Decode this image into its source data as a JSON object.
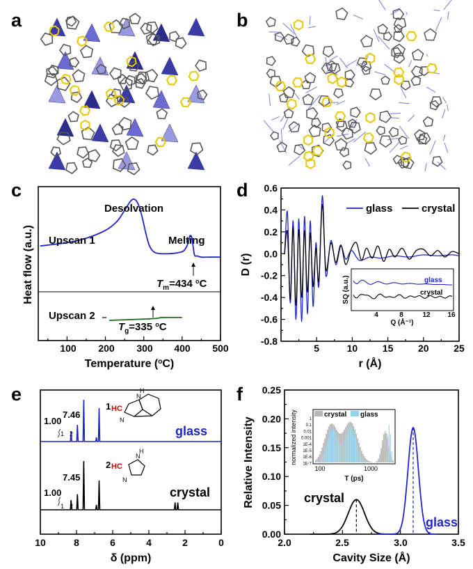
{
  "panels": {
    "a": {
      "label": "a"
    },
    "b": {
      "label": "b"
    },
    "c": {
      "label": "c"
    },
    "d": {
      "label": "d"
    },
    "e": {
      "label": "e"
    },
    "f": {
      "label": "f"
    }
  },
  "colors": {
    "glass": "#1f25c8",
    "crystal": "#000000",
    "upscan2": "#1e6b1e",
    "zn_poly": "#4a4ab0",
    "linker_yellow": "#e8c800",
    "bond_gray": "#555555",
    "bar_gray": "#b8b8b8",
    "bar_blue": "#8fd6ea"
  },
  "chart_data": [
    {
      "id": "c",
      "type": "line",
      "xlabel": "Temperature (",
      "xlabel_unit": "C)",
      "ylabel": "Heat flow (a.u.)",
      "xlim": [
        25,
        500
      ],
      "xticks": [
        "100",
        "200",
        "300",
        "400",
        "500"
      ],
      "annotations": {
        "desolvation": "Desolvation",
        "upscan1": "Upscan 1",
        "melting": "Melting",
        "upscan2": "Upscan 2",
        "tm_sym": "T",
        "tm_sub": "m",
        "tm_val": "=434 ",
        "tm_unit": "C",
        "tg_sym": "T",
        "tg_sub": "g",
        "tg_val": "=335 ",
        "tg_unit": "C"
      },
      "series": [
        {
          "name": "Upscan 1",
          "x": [
            30,
            100,
            150,
            200,
            230,
            250,
            265,
            275,
            285,
            295,
            305,
            315,
            330,
            360,
            390,
            405,
            415,
            420,
            425,
            428,
            432,
            436,
            440,
            450,
            470,
            500
          ],
          "y": [
            0.48,
            0.51,
            0.55,
            0.62,
            0.7,
            0.8,
            0.88,
            0.9,
            0.86,
            0.75,
            0.6,
            0.48,
            0.42,
            0.41,
            0.42,
            0.44,
            0.5,
            0.57,
            0.56,
            0.49,
            0.4,
            0.39,
            0.39,
            0.38,
            0.38,
            0.38
          ]
        },
        {
          "name": "Upscan 2",
          "x": [
            210,
            240,
            270,
            300,
            320,
            335,
            345,
            355,
            365,
            380,
            400
          ],
          "y": [
            0.25,
            0.255,
            0.26,
            0.265,
            0.27,
            0.275,
            0.283,
            0.285,
            0.284,
            0.284,
            0.284
          ]
        }
      ]
    },
    {
      "id": "d",
      "type": "line",
      "xlabel": "r (Å)",
      "ylabel": "D (r)",
      "xlim": [
        0,
        25
      ],
      "ylim": [
        -0.8,
        0.6
      ],
      "xticks": [
        "5",
        "10",
        "15",
        "20",
        "25"
      ],
      "yticks": [
        "0.6",
        "0.4",
        "0.2",
        "0.0",
        "-0.2",
        "-0.4",
        "-0.6",
        "-0.8"
      ],
      "legend": [
        "glass",
        "crystal"
      ],
      "series": [
        {
          "name": "glass",
          "x": [
            0.5,
            0.9,
            1.3,
            1.7,
            2.1,
            2.5,
            2.9,
            3.3,
            3.7,
            4.1,
            4.5,
            4.9,
            5.3,
            5.8,
            6.3,
            7.0,
            7.7,
            8.4,
            9.1,
            9.9,
            11.0,
            12.5,
            14.0,
            16.0,
            18.0,
            20.0,
            22.0,
            24.0,
            25.0
          ],
          "y": [
            0.0,
            0.38,
            -0.45,
            0.3,
            -0.6,
            0.32,
            -0.62,
            0.34,
            -0.55,
            0.3,
            -0.48,
            0.1,
            -0.3,
            0.53,
            -0.2,
            0.12,
            -0.1,
            0.07,
            -0.05,
            0.03,
            -0.06,
            -0.03,
            -0.04,
            -0.02,
            -0.03,
            -0.01,
            -0.02,
            -0.01,
            -0.02
          ]
        },
        {
          "name": "crystal",
          "x": [
            0.5,
            0.9,
            1.3,
            1.7,
            2.1,
            2.5,
            2.9,
            3.3,
            3.7,
            4.1,
            4.5,
            4.9,
            5.3,
            5.8,
            6.3,
            7.0,
            7.7,
            8.4,
            9.1,
            9.9,
            10.6,
            11.3,
            12.0,
            12.8,
            13.6,
            14.4,
            15.2,
            16.0,
            17.0,
            18.0,
            19.0,
            20.0,
            21.0,
            22.0,
            23.0,
            24.0,
            25.0
          ],
          "y": [
            0.0,
            0.2,
            -0.42,
            0.24,
            -0.47,
            0.22,
            -0.4,
            0.21,
            -0.35,
            0.19,
            -0.3,
            0.05,
            -0.25,
            0.45,
            -0.15,
            0.1,
            -0.08,
            0.08,
            -0.1,
            0.05,
            0.1,
            -0.06,
            0.05,
            -0.04,
            0.07,
            -0.07,
            0.04,
            -0.03,
            0.05,
            -0.05,
            0.03,
            0.04,
            -0.02,
            0.03,
            -0.03,
            0.02,
            0.0
          ]
        }
      ],
      "inset": {
        "xlabel": "Q (Å⁻¹)",
        "ylabel": "SQ (a.u.)",
        "xticks": [
          "4",
          "8",
          "12",
          "16"
        ],
        "labels": [
          "glass",
          "crystal"
        ]
      }
    },
    {
      "id": "e",
      "type": "line",
      "xlabel": "δ (ppm)",
      "xticks": [
        "10",
        "8",
        "6",
        "4",
        "2",
        "0"
      ],
      "labels": {
        "glass": "glass",
        "crystal": "crystal",
        "int1": "1.00",
        "int2_glass": "7.46",
        "int2_crystal": "7.45",
        "p1": "1",
        "p2": "2",
        "mol1": "1",
        "mol2": "2",
        "hc": "HC",
        "n": "N",
        "nh": "N",
        "h": "H"
      },
      "peaks_glass": [
        {
          "ppm": 8.3,
          "h": 0.25
        },
        {
          "ppm": 7.95,
          "h": 0.4
        },
        {
          "ppm": 7.6,
          "h": 1.0
        },
        {
          "ppm": 6.9,
          "h": 0.1
        },
        {
          "ppm": 6.75,
          "h": 0.8
        }
      ],
      "peaks_crystal": [
        {
          "ppm": 8.3,
          "h": 0.2
        },
        {
          "ppm": 7.95,
          "h": 0.32
        },
        {
          "ppm": 7.6,
          "h": 1.0
        },
        {
          "ppm": 6.9,
          "h": 0.1
        },
        {
          "ppm": 6.75,
          "h": 0.6
        },
        {
          "ppm": 2.55,
          "h": 0.15
        },
        {
          "ppm": 2.4,
          "h": 0.15
        }
      ]
    },
    {
      "id": "f",
      "type": "line",
      "xlabel": "Cavity Size (Å)",
      "ylabel": "Relative Intensity",
      "xlim": [
        2.0,
        3.5
      ],
      "ylim": [
        0.0,
        0.25
      ],
      "xticks": [
        "2.0",
        "2.5",
        "3.0",
        "3.5"
      ],
      "yticks": [
        "0.00",
        "0.05",
        "0.10",
        "0.15",
        "0.20",
        "0.25"
      ],
      "labels": {
        "crystal": "crystal",
        "glass": "glass"
      },
      "series": [
        {
          "name": "crystal",
          "peak_x": 2.62,
          "peak_y": 0.06,
          "sigma": 0.07,
          "range": [
            2.22,
            2.98
          ]
        },
        {
          "name": "glass",
          "peak_x": 3.11,
          "peak_y": 0.185,
          "sigma": 0.045,
          "range": [
            2.8,
            3.32
          ]
        }
      ],
      "inset": {
        "xlabel": "T (ps)",
        "ylabel": "normalized intensity",
        "yticks": [
          "1",
          "0.1",
          "0.01",
          "0.001",
          "1E-4",
          "1E-5",
          "1E-6",
          "1E-7"
        ],
        "xticks": [
          "100",
          "1000"
        ],
        "legend": [
          "crystal",
          "glass"
        ]
      }
    }
  ]
}
